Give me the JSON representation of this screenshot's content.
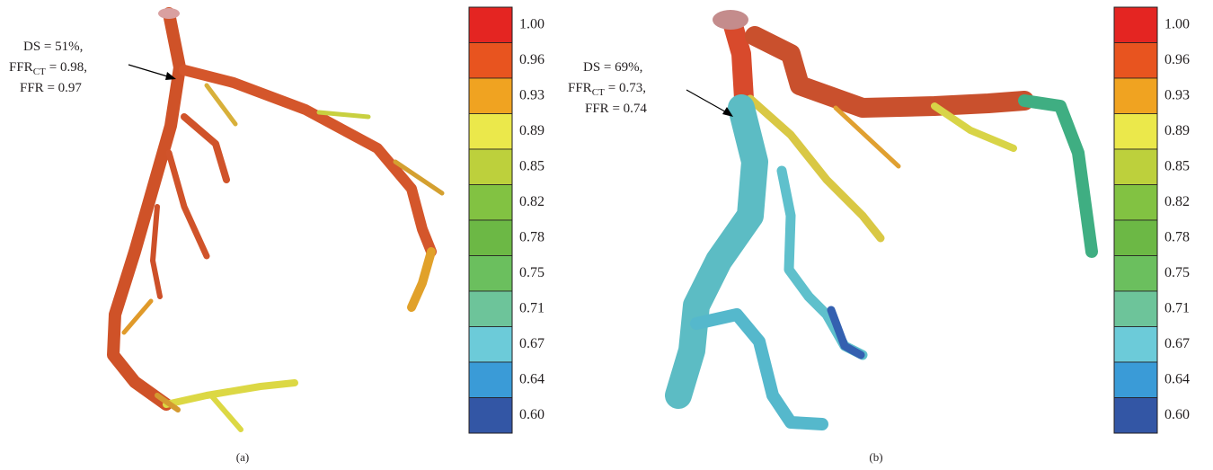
{
  "colorbar_colors": [
    "#e42522",
    "#e8541f",
    "#f0a321",
    "#ebe84b",
    "#bdd03c",
    "#82c242",
    "#6cb845",
    "#6bbf5e",
    "#6dc49a",
    "#6ccbd9",
    "#3a9bd7",
    "#3356a5"
  ],
  "panels": [
    {
      "caption": "(a)",
      "annotation": {
        "line1": "DS = 51%,",
        "line2_main": "FFR",
        "line2_sub": "CT",
        "line2_rest": "= 0.98,",
        "line3": "FFR = 0.97"
      },
      "colorbar_labels": [
        "1.00",
        "0.96",
        "0.93",
        "0.89",
        "0.85",
        "0.82",
        "0.78",
        "0.75",
        "0.71",
        "0.67",
        "0.64",
        "0.60"
      ]
    },
    {
      "caption": "(b)",
      "annotation": {
        "line1": "DS = 69%,",
        "line2_main": "FFR",
        "line2_sub": "CT",
        "line2_rest": "= 0.73,",
        "line3": "FFR = 0.74"
      },
      "colorbar_labels": [
        "1.00",
        "0.96",
        "0.93",
        "0.89",
        "0.85",
        "0.82",
        "0.78",
        "0.75",
        "0.71",
        "0.67",
        "0.64",
        "0.60"
      ]
    }
  ]
}
